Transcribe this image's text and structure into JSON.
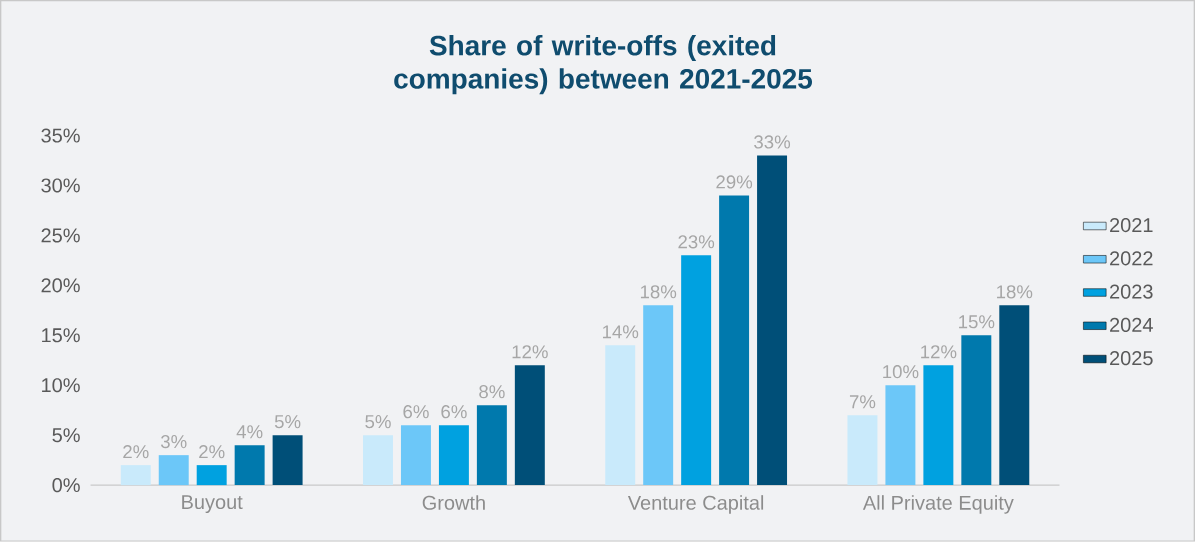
{
  "chart_data": {
    "type": "bar",
    "title": "Share of write-offs (exited companies) between 2021-2025",
    "categories": [
      "Buyout",
      "Growth",
      "Venture Capital",
      "All Private Equity"
    ],
    "series": [
      {
        "name": "2021",
        "color": "#c9eafb",
        "values": [
          2,
          5,
          14,
          7
        ],
        "value_labels": [
          "2%",
          "5%",
          "14%",
          "7%"
        ]
      },
      {
        "name": "2022",
        "color": "#6cc7f8",
        "values": [
          3,
          6,
          18,
          10
        ],
        "value_labels": [
          "3%",
          "6%",
          "18%",
          "10%"
        ]
      },
      {
        "name": "2023",
        "color": "#00a1e0",
        "values": [
          2,
          6,
          23,
          12
        ],
        "value_labels": [
          "2%",
          "6%",
          "23%",
          "12%"
        ]
      },
      {
        "name": "2024",
        "color": "#0079ad",
        "values": [
          4,
          8,
          29,
          15
        ],
        "value_labels": [
          "4%",
          "8%",
          "29%",
          "15%"
        ]
      },
      {
        "name": "2025",
        "color": "#004f78",
        "values": [
          5,
          12,
          33,
          18
        ],
        "value_labels": [
          "5%",
          "12%",
          "33%",
          "18%"
        ]
      }
    ],
    "ylim": [
      0,
      35
    ],
    "yticks": [
      {
        "value": 0,
        "label": "0%"
      },
      {
        "value": 5,
        "label": "5%"
      },
      {
        "value": 10,
        "label": "10%"
      },
      {
        "value": 15,
        "label": "15%"
      },
      {
        "value": 20,
        "label": "20%"
      },
      {
        "value": 25,
        "label": "25%"
      },
      {
        "value": 30,
        "label": "30%"
      },
      {
        "value": 35,
        "label": "35%"
      }
    ],
    "grid": false,
    "legend": "right"
  }
}
